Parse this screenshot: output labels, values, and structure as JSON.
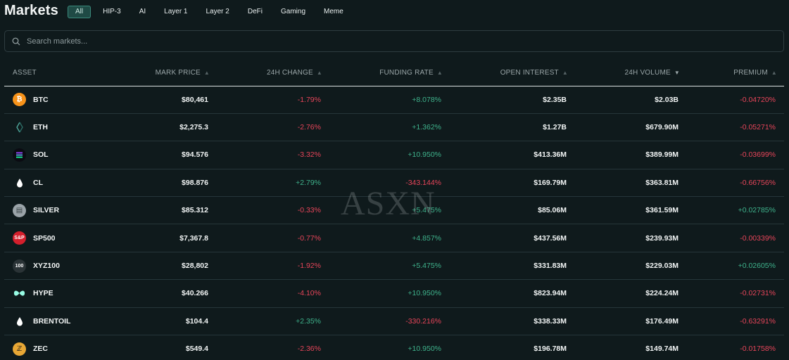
{
  "header": {
    "title": "Markets",
    "filters": [
      "All",
      "HIP-3",
      "AI",
      "Layer 1",
      "Layer 2",
      "DeFi",
      "Gaming",
      "Meme"
    ],
    "active_filter": "All"
  },
  "search": {
    "placeholder": "Search markets..."
  },
  "table": {
    "columns": [
      "ASSET",
      "MARK PRICE",
      "24H CHANGE",
      "FUNDING RATE",
      "OPEN INTEREST",
      "24H VOLUME",
      "PREMIUM"
    ],
    "rows": [
      {
        "asset": "BTC",
        "icon": "bitcoin-icon",
        "color": "#f7931a",
        "glyph": "₿",
        "mark_price": "$80,461",
        "change": "-1.79%",
        "change_dir": "neg",
        "funding": "+8.078%",
        "funding_dir": "pos",
        "oi": "$2.35B",
        "volume": "$2.03B",
        "premium": "-0.04720%",
        "premium_dir": "neg"
      },
      {
        "asset": "ETH",
        "icon": "ethereum-icon",
        "color": "#0f1a1c",
        "glyph": "",
        "mark_price": "$2,275.3",
        "change": "-2.76%",
        "change_dir": "neg",
        "funding": "+1.362%",
        "funding_dir": "pos",
        "oi": "$1.27B",
        "volume": "$679.90M",
        "premium": "-0.05271%",
        "premium_dir": "neg"
      },
      {
        "asset": "SOL",
        "icon": "solana-icon",
        "color": "#0b0b12",
        "glyph": "≡",
        "mark_price": "$94.576",
        "change": "-3.32%",
        "change_dir": "neg",
        "funding": "+10.950%",
        "funding_dir": "pos",
        "oi": "$413.36M",
        "volume": "$389.99M",
        "premium": "-0.03699%",
        "premium_dir": "neg"
      },
      {
        "asset": "CL",
        "icon": "oil-drop-icon",
        "color": "#0f1a1c",
        "glyph": "",
        "mark_price": "$98.876",
        "change": "+2.79%",
        "change_dir": "pos",
        "funding": "-343.144%",
        "funding_dir": "neg",
        "oi": "$169.79M",
        "volume": "$363.81M",
        "premium": "-0.66756%",
        "premium_dir": "neg"
      },
      {
        "asset": "SILVER",
        "icon": "silver-bars-icon",
        "color": "#9aa3a8",
        "glyph": "▤",
        "mark_price": "$85.312",
        "change": "-0.33%",
        "change_dir": "neg",
        "funding": "+5.475%",
        "funding_dir": "pos",
        "oi": "$85.06M",
        "volume": "$361.59M",
        "premium": "+0.02785%",
        "premium_dir": "pos"
      },
      {
        "asset": "SP500",
        "icon": "sp500-icon",
        "color": "#d41f2c",
        "glyph": "S&P",
        "mark_price": "$7,367.8",
        "change": "-0.77%",
        "change_dir": "neg",
        "funding": "+4.857%",
        "funding_dir": "pos",
        "oi": "$437.56M",
        "volume": "$239.93M",
        "premium": "-0.00339%",
        "premium_dir": "neg"
      },
      {
        "asset": "XYZ100",
        "icon": "xyz100-icon",
        "color": "#2a3336",
        "glyph": "100",
        "mark_price": "$28,802",
        "change": "-1.92%",
        "change_dir": "neg",
        "funding": "+5.475%",
        "funding_dir": "pos",
        "oi": "$331.83M",
        "volume": "$229.03M",
        "premium": "+0.02605%",
        "premium_dir": "pos"
      },
      {
        "asset": "HYPE",
        "icon": "hyperliquid-icon",
        "color": "#0f1a1c",
        "glyph": "",
        "mark_price": "$40.266",
        "change": "-4.10%",
        "change_dir": "neg",
        "funding": "+10.950%",
        "funding_dir": "pos",
        "oi": "$823.94M",
        "volume": "$224.24M",
        "premium": "-0.02731%",
        "premium_dir": "neg"
      },
      {
        "asset": "BRENTOIL",
        "icon": "oil-drop-icon",
        "color": "#0f1a1c",
        "glyph": "",
        "mark_price": "$104.4",
        "change": "+2.35%",
        "change_dir": "pos",
        "funding": "-330.216%",
        "funding_dir": "neg",
        "oi": "$338.33M",
        "volume": "$176.49M",
        "premium": "-0.63291%",
        "premium_dir": "neg"
      },
      {
        "asset": "ZEC",
        "icon": "zcash-icon",
        "color": "#e8a735",
        "glyph": "ℤ",
        "mark_price": "$549.4",
        "change": "-2.36%",
        "change_dir": "neg",
        "funding": "+10.950%",
        "funding_dir": "pos",
        "oi": "$196.78M",
        "volume": "$149.74M",
        "premium": "-0.01758%",
        "premium_dir": "neg"
      }
    ]
  },
  "watermark": "ASXN"
}
